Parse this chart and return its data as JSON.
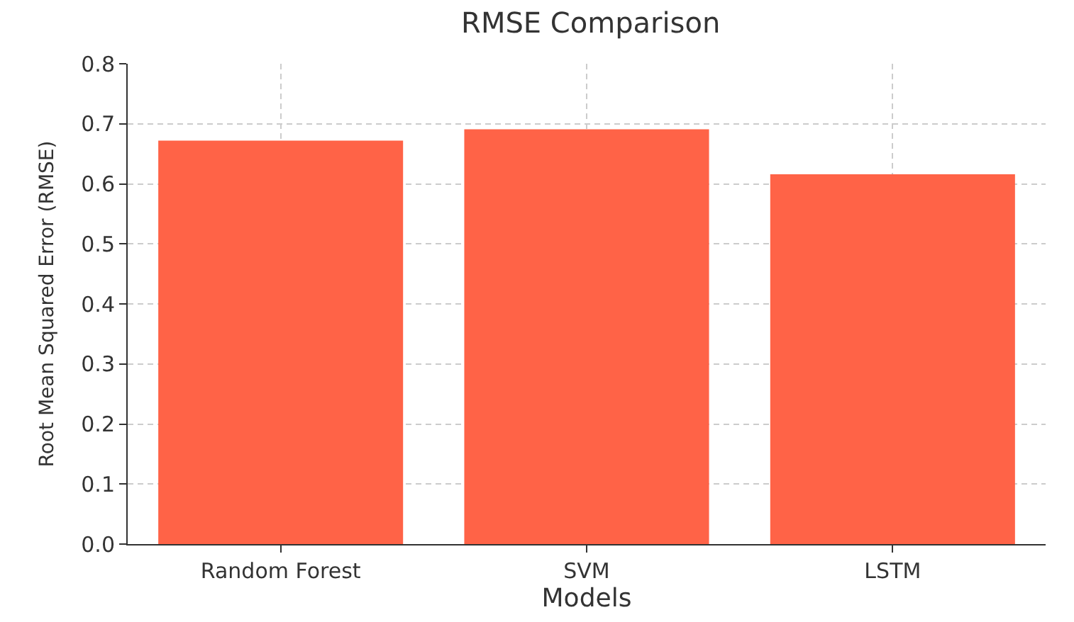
{
  "chart_data": {
    "type": "bar",
    "title": "RMSE Comparison",
    "xlabel": "Models",
    "ylabel": "Root Mean Squared Error (RMSE)",
    "categories": [
      "Random Forest",
      "SVM",
      "LSTM"
    ],
    "values": [
      0.672,
      0.691,
      0.616
    ],
    "color": "#ff6347",
    "ylim": [
      0,
      0.8
    ],
    "yticks": [
      {
        "value": 0,
        "label": "0.0"
      },
      0.1,
      0.2,
      0.3,
      0.4,
      0.5,
      0.6,
      0.7,
      0.8
    ],
    "grid": true
  }
}
